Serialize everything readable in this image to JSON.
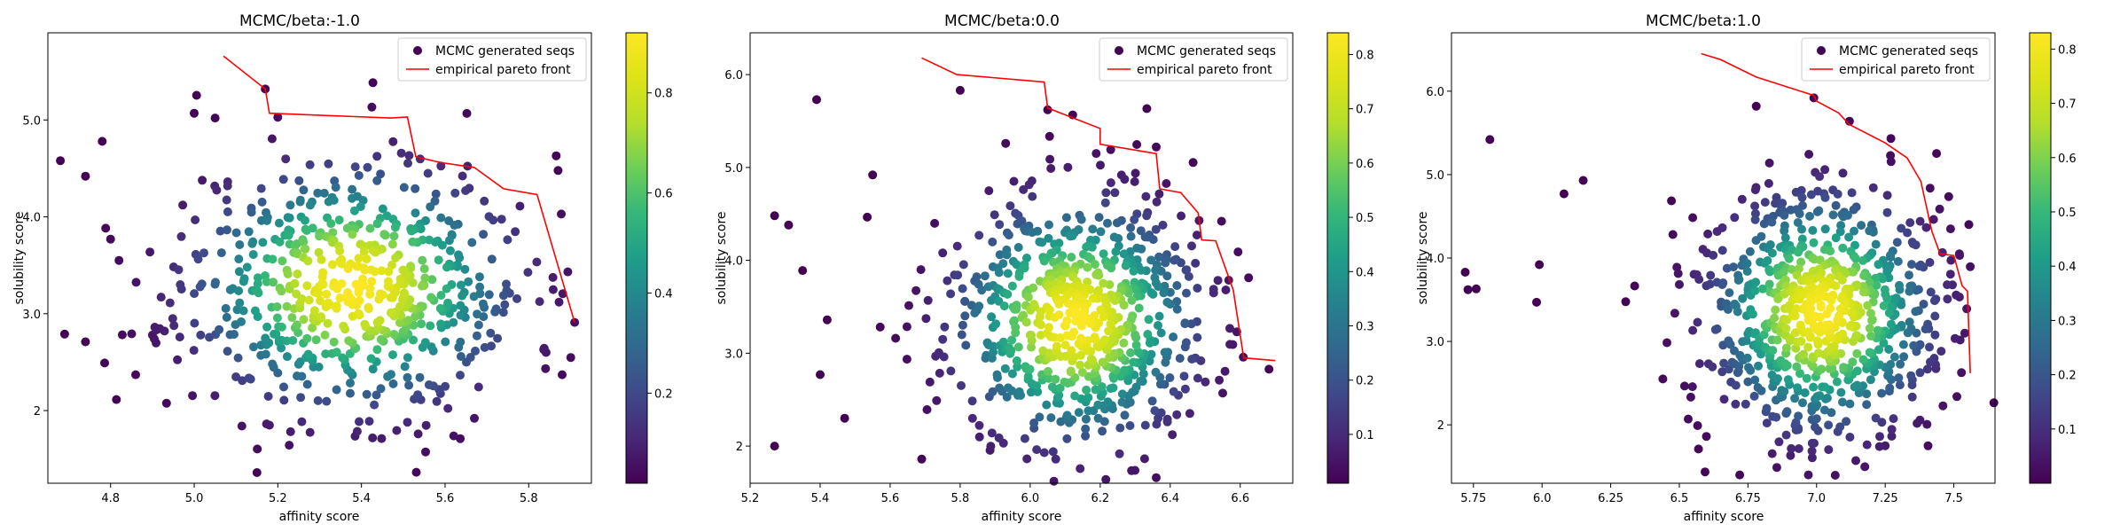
{
  "chart_data": [
    {
      "type": "scatter",
      "title": "MCMC/beta:-1.0",
      "xlabel": "affinity score",
      "ylabel": "solubility score",
      "xlim": [
        4.65,
        5.95
      ],
      "ylim": [
        1.25,
        5.9
      ],
      "xticks": [
        4.8,
        5.0,
        5.2,
        5.4,
        5.6,
        5.8
      ],
      "yticks": [
        2,
        3,
        4,
        5
      ],
      "colorbar": {
        "min": 0.02,
        "max": 0.92,
        "ticks": [
          0.2,
          0.4,
          0.6,
          0.8
        ]
      },
      "legend": {
        "position": "top-right",
        "entries": [
          "MCMC generated seqs",
          "empirical pareto front"
        ]
      },
      "pareto_front": {
        "x": [
          5.07,
          5.17,
          5.18,
          5.47,
          5.51,
          5.53,
          5.59,
          5.67,
          5.74,
          5.82,
          5.91
        ],
        "y": [
          5.66,
          5.32,
          5.07,
          5.02,
          5.03,
          4.62,
          4.56,
          4.51,
          4.29,
          4.23,
          2.91
        ]
      },
      "cloud": {
        "cx": 5.38,
        "cy": 3.28,
        "sx": 0.21,
        "sy": 0.68,
        "n": 640,
        "seed": 11
      },
      "outliers": [
        [
          4.68,
          4.58
        ],
        [
          4.69,
          2.79
        ],
        [
          4.74,
          4.42
        ],
        [
          4.74,
          2.71
        ],
        [
          4.78,
          4.78
        ],
        [
          4.8,
          3.77
        ],
        [
          4.82,
          3.55
        ],
        [
          4.86,
          2.37
        ],
        [
          4.9,
          2.78
        ],
        [
          5.0,
          5.07
        ],
        [
          5.05,
          5.02
        ],
        [
          5.15,
          1.36
        ],
        [
          5.18,
          1.85
        ],
        [
          5.51,
          1.88
        ],
        [
          5.67,
          1.92
        ],
        [
          5.88,
          2.37
        ],
        [
          5.91,
          2.91
        ],
        [
          5.17,
          5.32
        ]
      ]
    },
    {
      "type": "scatter",
      "title": "MCMC/beta:0.0",
      "xlabel": "affinity score",
      "ylabel": "solubility score",
      "xlim": [
        5.2,
        6.75
      ],
      "ylim": [
        1.6,
        6.45
      ],
      "xticks": [
        5.2,
        5.4,
        5.6,
        5.8,
        6.0,
        6.2,
        6.4,
        6.6
      ],
      "yticks": [
        2,
        3,
        4,
        5,
        6
      ],
      "colorbar": {
        "min": 0.01,
        "max": 0.84,
        "ticks": [
          0.1,
          0.2,
          0.3,
          0.4,
          0.5,
          0.6,
          0.7,
          0.8
        ]
      },
      "legend": {
        "position": "top-right",
        "entries": [
          "MCMC generated seqs",
          "empirical pareto front"
        ]
      },
      "pareto_front": {
        "x": [
          5.69,
          5.79,
          6.04,
          6.05,
          6.2,
          6.2,
          6.36,
          6.37,
          6.43,
          6.48,
          6.49,
          6.53,
          6.58,
          6.61,
          6.7
        ],
        "y": [
          6.18,
          6.0,
          5.92,
          5.64,
          5.42,
          5.25,
          5.15,
          4.77,
          4.73,
          4.51,
          4.22,
          4.21,
          3.68,
          2.95,
          2.92
        ]
      },
      "cloud": {
        "cx": 6.13,
        "cy": 3.35,
        "sx": 0.19,
        "sy": 0.72,
        "n": 720,
        "seed": 23
      },
      "outliers": [
        [
          5.27,
          4.48
        ],
        [
          5.27,
          2.0
        ],
        [
          5.31,
          4.38
        ],
        [
          5.35,
          3.89
        ],
        [
          5.39,
          5.73
        ],
        [
          5.4,
          2.77
        ],
        [
          5.42,
          3.36
        ],
        [
          5.47,
          2.3
        ],
        [
          5.55,
          4.92
        ],
        [
          5.69,
          1.86
        ],
        [
          5.8,
          5.83
        ],
        [
          6.36,
          1.66
        ],
        [
          6.55,
          2.57
        ],
        [
          6.54,
          2.71
        ],
        [
          6.05,
          5.62
        ],
        [
          6.36,
          5.22
        ]
      ]
    },
    {
      "type": "scatter",
      "title": "MCMC/beta:1.0",
      "xlabel": "affinity score",
      "ylabel": "solubility score",
      "xlim": [
        5.67,
        7.65
      ],
      "ylim": [
        1.3,
        6.7
      ],
      "xticks": [
        5.75,
        6.0,
        6.25,
        6.5,
        6.75,
        7.0,
        7.25,
        7.5
      ],
      "yticks": [
        2,
        3,
        4,
        5,
        6
      ],
      "colorbar": {
        "min": 0.0,
        "max": 0.83,
        "ticks": [
          0.1,
          0.2,
          0.3,
          0.4,
          0.5,
          0.6,
          0.7,
          0.8
        ]
      },
      "legend": {
        "position": "top-right",
        "entries": [
          "MCMC generated seqs",
          "empirical pareto front"
        ]
      },
      "pareto_front": {
        "x": [
          6.58,
          6.65,
          6.78,
          6.99,
          7.0,
          7.08,
          7.12,
          7.25,
          7.33,
          7.38,
          7.42,
          7.45,
          7.5,
          7.53,
          7.55,
          7.56
        ],
        "y": [
          6.45,
          6.38,
          6.17,
          5.95,
          5.88,
          5.74,
          5.6,
          5.38,
          5.2,
          4.92,
          4.32,
          4.05,
          4.03,
          3.67,
          3.6,
          2.62
        ]
      },
      "cloud": {
        "cx": 7.02,
        "cy": 3.35,
        "sx": 0.22,
        "sy": 0.78,
        "n": 760,
        "seed": 37
      },
      "outliers": [
        [
          5.72,
          3.83
        ],
        [
          5.73,
          3.62
        ],
        [
          5.76,
          3.63
        ],
        [
          5.81,
          5.42
        ],
        [
          5.98,
          3.47
        ],
        [
          5.99,
          3.92
        ],
        [
          6.08,
          4.77
        ],
        [
          6.15,
          4.93
        ],
        [
          6.44,
          2.55
        ],
        [
          6.57,
          1.71
        ],
        [
          6.72,
          1.4
        ],
        [
          6.97,
          1.4
        ],
        [
          7.25,
          1.75
        ],
        [
          6.78,
          5.82
        ],
        [
          7.12,
          5.64
        ],
        [
          6.99,
          5.92
        ],
        [
          7.52,
          4.05
        ],
        [
          7.54,
          3.1
        ]
      ]
    }
  ]
}
